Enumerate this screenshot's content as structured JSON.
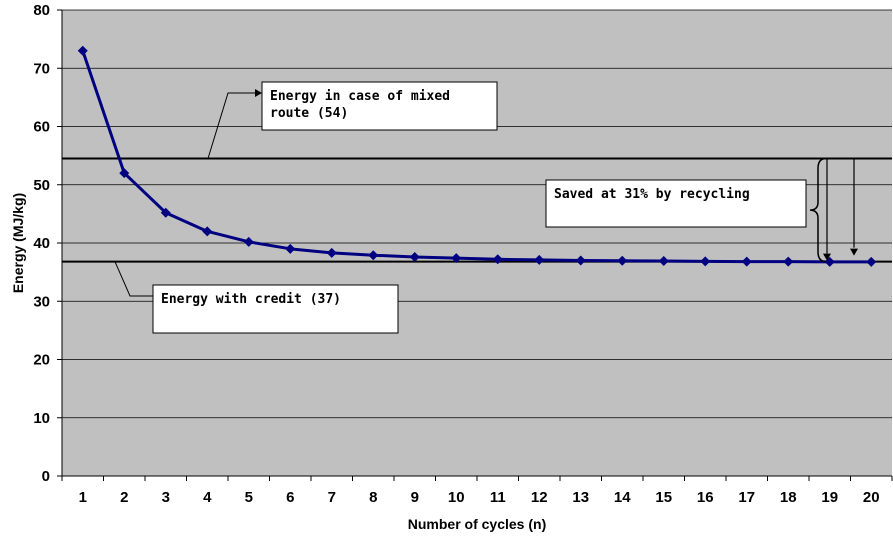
{
  "chart_data": {
    "type": "line",
    "xlabel": "Number of cycles (n)",
    "ylabel": "Energy (MJ/kg)",
    "ylim": [
      0,
      80
    ],
    "yticks": [
      0,
      10,
      20,
      30,
      40,
      50,
      60,
      70,
      80
    ],
    "x": [
      1,
      2,
      3,
      4,
      5,
      6,
      7,
      8,
      9,
      10,
      11,
      12,
      13,
      14,
      15,
      16,
      17,
      18,
      19,
      20
    ],
    "series": [
      {
        "values": [
          73.0,
          52.0,
          45.2,
          42.0,
          40.2,
          39.0,
          38.3,
          37.9,
          37.6,
          37.4,
          37.2,
          37.1,
          37.0,
          36.95,
          36.9,
          36.85,
          36.8,
          36.8,
          36.75,
          36.75
        ]
      }
    ],
    "reference_lines": [
      {
        "value": 54.5,
        "label": "Energy in case of mixed route (54)"
      },
      {
        "value": 36.8,
        "label": "Energy with credit (37)"
      }
    ],
    "annotations": [
      {
        "text": "Saved at 31% by recycling"
      }
    ],
    "grid": true,
    "legend": "none"
  },
  "colors": {
    "plot_background": "#c0c0c0",
    "series_line": "#000080",
    "gridline": "#000000",
    "reference_line": "#000000",
    "box_fill": "#ffffff"
  }
}
